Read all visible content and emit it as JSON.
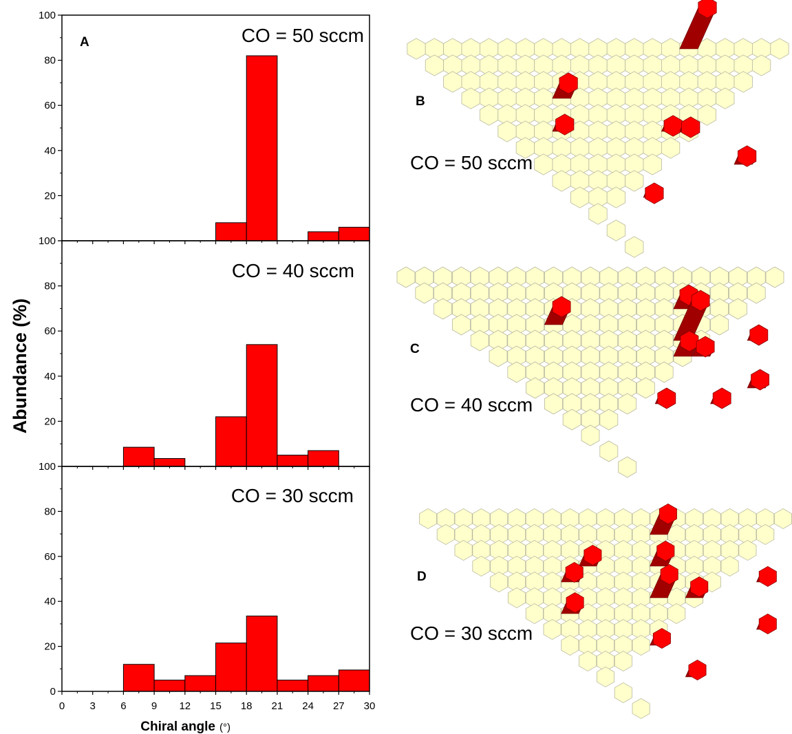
{
  "figure": {
    "ylabel": "Abundance (%)",
    "xlabel": "Chiral angle",
    "xlabel_unit": "(°)"
  },
  "chart_data": [
    {
      "type": "bar",
      "panel": "A",
      "title": "CO = 50 sccm",
      "x": [
        7.5,
        10.5,
        13.5,
        16.5,
        19.5,
        22.5,
        25.5,
        28.5
      ],
      "values": [
        0,
        0,
        0,
        8,
        82,
        0,
        4,
        6
      ],
      "bar_width": 3,
      "xlim": [
        0,
        30
      ],
      "ylim": [
        0,
        100
      ],
      "xticks": [
        0,
        3,
        6,
        9,
        12,
        15,
        18,
        21,
        24,
        27,
        30
      ],
      "yticks": [
        0,
        20,
        40,
        60,
        80,
        100
      ],
      "color": "#ff0000"
    },
    {
      "type": "bar",
      "panel": "",
      "title": "CO = 40 sccm",
      "x": [
        7.5,
        10.5,
        13.5,
        16.5,
        19.5,
        22.5,
        25.5,
        28.5
      ],
      "values": [
        8.5,
        3.5,
        0,
        22,
        54,
        5,
        7,
        0
      ],
      "bar_width": 3,
      "xlim": [
        0,
        30
      ],
      "ylim": [
        0,
        100
      ],
      "xticks": [
        0,
        3,
        6,
        9,
        12,
        15,
        18,
        21,
        24,
        27,
        30
      ],
      "yticks": [
        0,
        20,
        40,
        60,
        80,
        100
      ],
      "color": "#ff0000"
    },
    {
      "type": "bar",
      "panel": "",
      "title": "CO = 30 sccm",
      "x": [
        7.5,
        10.5,
        13.5,
        16.5,
        19.5,
        22.5,
        25.5,
        28.5
      ],
      "values": [
        12,
        5,
        7,
        21.5,
        33.5,
        5,
        7,
        9.5
      ],
      "bar_width": 3,
      "xlim": [
        0,
        30
      ],
      "ylim": [
        0,
        100
      ],
      "xticks": [
        0,
        3,
        6,
        9,
        12,
        15,
        18,
        21,
        24,
        27,
        30
      ],
      "yticks": [
        0,
        20,
        40,
        60,
        80,
        100
      ],
      "color": "#ff0000"
    }
  ],
  "maps": [
    {
      "panel": "B",
      "caption": "CO = 50 sccm"
    },
    {
      "panel": "C",
      "caption": "CO = 40 sccm"
    },
    {
      "panel": "D",
      "caption": "CO = 30 sccm"
    }
  ],
  "colors": {
    "hex_fill": "#ffffcc",
    "hex_edge": "#b8b8a0",
    "bar": "#ff0000",
    "pillar_side": "#a00000"
  }
}
